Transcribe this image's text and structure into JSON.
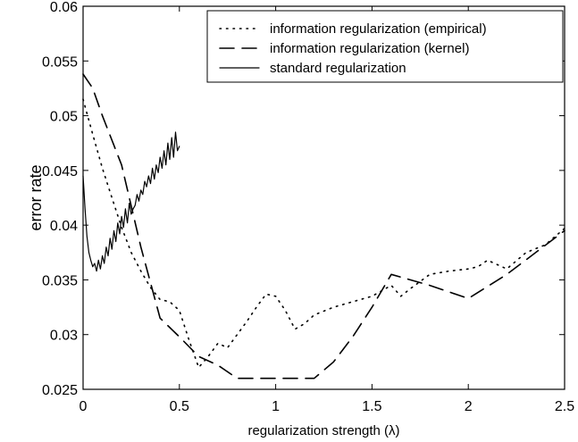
{
  "chart_data": {
    "type": "line",
    "title": "",
    "xlabel": "regularization strength (λ)",
    "ylabel": "error rate",
    "xlim": [
      0,
      2.5
    ],
    "ylim": [
      0.025,
      0.06
    ],
    "x_ticks": [
      0,
      0.5,
      1,
      1.5,
      2,
      2.5
    ],
    "x_tick_labels": [
      "0",
      "0.5",
      "1",
      "1.5",
      "2",
      "2.5"
    ],
    "y_ticks": [
      0.025,
      0.03,
      0.035,
      0.04,
      0.045,
      0.05,
      0.055,
      0.06
    ],
    "y_tick_labels": [
      "0.025",
      "0.03",
      "0.035",
      "0.04",
      "0.045",
      "0.05",
      "0.055",
      "0.06"
    ],
    "grid": false,
    "legend_position": "top-right",
    "series": [
      {
        "name": "information regularization (empirical)",
        "style": "dotted",
        "color": "#000000",
        "x": [
          0.0,
          0.05,
          0.1,
          0.15,
          0.2,
          0.25,
          0.3,
          0.35,
          0.4,
          0.45,
          0.5,
          0.55,
          0.6,
          0.65,
          0.7,
          0.75,
          0.8,
          0.85,
          0.9,
          0.95,
          1.0,
          1.05,
          1.1,
          1.15,
          1.2,
          1.3,
          1.4,
          1.5,
          1.6,
          1.65,
          1.7,
          1.8,
          1.9,
          2.0,
          2.05,
          2.1,
          2.2,
          2.3,
          2.4,
          2.5
        ],
        "y": [
          0.0515,
          0.0483,
          0.0452,
          0.0425,
          0.0398,
          0.0375,
          0.0358,
          0.0343,
          0.0332,
          0.033,
          0.0322,
          0.0295,
          0.027,
          0.028,
          0.0292,
          0.0288,
          0.03,
          0.0312,
          0.0325,
          0.0337,
          0.0335,
          0.0322,
          0.0305,
          0.031,
          0.0318,
          0.0325,
          0.033,
          0.0335,
          0.0345,
          0.0335,
          0.0342,
          0.0355,
          0.0358,
          0.036,
          0.0362,
          0.0368,
          0.036,
          0.0375,
          0.0382,
          0.0397
        ]
      },
      {
        "name": "information regularization (kernel)",
        "style": "dashed",
        "color": "#000000",
        "x": [
          0.0,
          0.05,
          0.1,
          0.2,
          0.3,
          0.4,
          0.5,
          0.6,
          0.7,
          0.8,
          0.9,
          1.0,
          1.1,
          1.2,
          1.3,
          1.4,
          1.5,
          1.6,
          1.8,
          2.0,
          2.2,
          2.5
        ],
        "y": [
          0.0538,
          0.0525,
          0.05,
          0.0455,
          0.038,
          0.0315,
          0.0298,
          0.028,
          0.0272,
          0.026,
          0.026,
          0.026,
          0.026,
          0.026,
          0.0275,
          0.0298,
          0.0325,
          0.0355,
          0.0345,
          0.0333,
          0.0355,
          0.0395
        ]
      },
      {
        "name": "standard regularization",
        "style": "solid",
        "color": "#000000",
        "x": [
          0.0,
          0.01,
          0.02,
          0.03,
          0.04,
          0.05,
          0.06,
          0.07,
          0.08,
          0.09,
          0.1,
          0.11,
          0.12,
          0.13,
          0.14,
          0.15,
          0.16,
          0.17,
          0.18,
          0.19,
          0.2,
          0.21,
          0.22,
          0.23,
          0.24,
          0.25,
          0.26,
          0.27,
          0.28,
          0.29,
          0.3,
          0.31,
          0.32,
          0.33,
          0.34,
          0.35,
          0.36,
          0.37,
          0.38,
          0.39,
          0.4,
          0.41,
          0.42,
          0.43,
          0.44,
          0.45,
          0.46,
          0.47,
          0.48,
          0.49,
          0.5
        ],
        "y": [
          0.0445,
          0.0415,
          0.039,
          0.0375,
          0.0368,
          0.0362,
          0.0365,
          0.0358,
          0.0368,
          0.036,
          0.0372,
          0.0365,
          0.038,
          0.0372,
          0.0388,
          0.0378,
          0.0395,
          0.0385,
          0.0402,
          0.0392,
          0.0408,
          0.0398,
          0.0415,
          0.0402,
          0.042,
          0.041,
          0.0415,
          0.0418,
          0.0428,
          0.0422,
          0.0432,
          0.0428,
          0.044,
          0.0435,
          0.0445,
          0.0438,
          0.0452,
          0.0442,
          0.0455,
          0.0448,
          0.0462,
          0.0452,
          0.0468,
          0.0455,
          0.0475,
          0.046,
          0.048,
          0.0462,
          0.0485,
          0.0468,
          0.0472
        ]
      }
    ]
  }
}
